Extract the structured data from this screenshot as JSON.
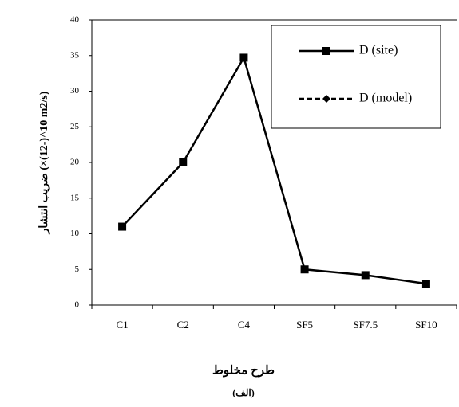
{
  "chart_data": {
    "type": "line",
    "categories": [
      "C1",
      "C2",
      "C4",
      "SF5",
      "SF7.5",
      "SF10"
    ],
    "series": [
      {
        "name": "D (site)",
        "color": "#000000",
        "marker": "square",
        "dash": "solid",
        "values": [
          11,
          20,
          34.7,
          5,
          4.2,
          3
        ]
      },
      {
        "name": "D (model)",
        "color": "#000000",
        "marker": "diamond",
        "dash": "dashed",
        "values": [
          null,
          null,
          null,
          null,
          null,
          null
        ]
      }
    ],
    "ylim": [
      0,
      40
    ],
    "yticks": [
      0,
      5,
      10,
      15,
      20,
      25,
      30,
      35,
      40
    ],
    "y_label": "ضریب انتشار (×10^(-12) m2/s)",
    "x_label": "طرح مخلوط",
    "caption": "(الف)",
    "grid": false
  }
}
